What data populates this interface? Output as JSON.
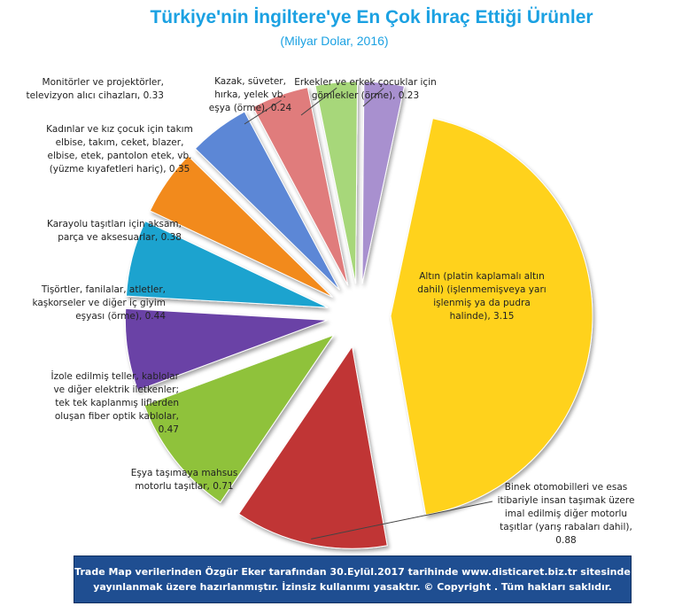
{
  "chart_data": {
    "type": "pie",
    "title": "Türkiye'nin İngiltere'ye En Çok İhraç Ettiği Ürünler",
    "subtitle": "(Milyar Dolar, 2016)",
    "exploded": true,
    "slices": [
      {
        "label": "Altın (platin kaplamalı  altın dahil) (işlenmemişveya yarı işlenmiş ya da pudra halinde), 3.15",
        "value": 3.15,
        "color": "#ffd21f"
      },
      {
        "label": "Binek otomobilleri  ve esas itibariyle insan taşımak üzere imal edilmiş diğer motorlu taşıtlar  (yarış rabaları dahil), 0.88",
        "value": 0.88,
        "color": "#c03535"
      },
      {
        "label": "Eşya taşımaya  mahsus motorlu taşıtlar,  0.71",
        "value": 0.71,
        "color": "#8fc23a"
      },
      {
        "label": "İzole edilmiş teller, kablolar ve diğer elektrik iletkenler; tek tek kaplanmış liflerden oluşan fiber optik kablolar, 0.47",
        "value": 0.47,
        "color": "#6a42a6"
      },
      {
        "label": "Tişörtler, fanilalar, atletler, kaşkorseler ve diğer iç giyim eşyası (örme), 0.44",
        "value": 0.44,
        "color": "#1aa3cf"
      },
      {
        "label": "Karayolu taşıtları  için aksam, parça ve aksesuarlar, 0.38",
        "value": 0.38,
        "color": "#f28a1e"
      },
      {
        "label": "Kadınlar ve kız çocuk için takım elbise, takım,  ceket, blazer, elbise, etek, pantolon etek, vb. (yüzme kıyafetleri hariç), 0.35",
        "value": 0.35,
        "color": "#5b87d6"
      },
      {
        "label": "Monitörler ve projektörler, televizyon alıcı cihazları, 0.33",
        "value": 0.33,
        "color": "#e07b7b"
      },
      {
        "label": "Kazak,  süveter, hırka, yelek vb. eşya (örme), 0.24",
        "value": 0.24,
        "color": "#a7d77a"
      },
      {
        "label": "Erkekler ve erkek çocuklar için gömlekler (örme), 0.23",
        "value": 0.23,
        "color": "#a890cf"
      }
    ]
  },
  "footer": {
    "text": "Trade Map verilerinden Özgür Eker tarafından 30.Eylül.2017  tarihinde www.disticaret.biz.tr  sitesinde yayınlanmak üzere hazırlanmıştır. İzinsiz kullanımı yasaktır. © Copyright . Tüm hakları saklıdır."
  }
}
